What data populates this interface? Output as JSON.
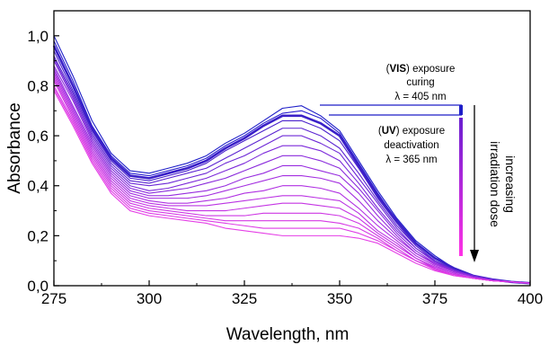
{
  "chart_data": {
    "type": "line",
    "xlabel": "Wavelength, nm",
    "ylabel": "Absorbance",
    "xlim": [
      275,
      400
    ],
    "ylim": [
      0.0,
      1.1
    ],
    "xticks": [
      275,
      300,
      325,
      350,
      375,
      400
    ],
    "xtick_labels": [
      "275",
      "300",
      "325",
      "350",
      "375",
      "400"
    ],
    "yticks": [
      0.0,
      0.2,
      0.4,
      0.6,
      0.8,
      1.0
    ],
    "ytick_labels": [
      "0,0",
      "0,2",
      "0,4",
      "0,6",
      "0,8",
      "1,0"
    ],
    "grid": false,
    "x": [
      275,
      280,
      285,
      290,
      295,
      300,
      305,
      310,
      315,
      320,
      325,
      330,
      335,
      340,
      345,
      350,
      355,
      360,
      365,
      370,
      375,
      380,
      385,
      390,
      395,
      400
    ],
    "series": [
      {
        "color": "#1f1fc8",
        "values": [
          1.0,
          0.84,
          0.66,
          0.53,
          0.46,
          0.45,
          0.47,
          0.49,
          0.52,
          0.57,
          0.61,
          0.66,
          0.71,
          0.72,
          0.68,
          0.62,
          0.5,
          0.38,
          0.27,
          0.18,
          0.12,
          0.07,
          0.04,
          0.025,
          0.015,
          0.01
        ]
      },
      {
        "color": "#2a1fd0",
        "values": [
          0.98,
          0.82,
          0.64,
          0.52,
          0.45,
          0.44,
          0.46,
          0.48,
          0.51,
          0.56,
          0.6,
          0.65,
          0.69,
          0.7,
          0.67,
          0.61,
          0.49,
          0.37,
          0.26,
          0.17,
          0.11,
          0.07,
          0.04,
          0.025,
          0.015,
          0.01
        ]
      },
      {
        "color": "#3a20c8",
        "values": [
          0.96,
          0.8,
          0.63,
          0.51,
          0.44,
          0.43,
          0.45,
          0.47,
          0.5,
          0.55,
          0.59,
          0.64,
          0.68,
          0.68,
          0.65,
          0.6,
          0.48,
          0.36,
          0.26,
          0.17,
          0.11,
          0.07,
          0.04,
          0.025,
          0.015,
          0.01
        ]
      },
      {
        "color": "#4b22cc",
        "values": [
          0.94,
          0.78,
          0.62,
          0.5,
          0.43,
          0.42,
          0.44,
          0.46,
          0.49,
          0.54,
          0.58,
          0.62,
          0.66,
          0.66,
          0.63,
          0.58,
          0.47,
          0.35,
          0.25,
          0.16,
          0.1,
          0.065,
          0.04,
          0.025,
          0.015,
          0.01
        ]
      },
      {
        "color": "#5c25d2",
        "values": [
          0.92,
          0.77,
          0.61,
          0.49,
          0.42,
          0.41,
          0.43,
          0.45,
          0.47,
          0.51,
          0.55,
          0.59,
          0.63,
          0.63,
          0.6,
          0.55,
          0.45,
          0.34,
          0.24,
          0.16,
          0.1,
          0.065,
          0.04,
          0.025,
          0.015,
          0.01
        ]
      },
      {
        "color": "#6c27d6",
        "values": [
          0.91,
          0.76,
          0.6,
          0.48,
          0.41,
          0.4,
          0.41,
          0.43,
          0.45,
          0.49,
          0.52,
          0.56,
          0.6,
          0.6,
          0.57,
          0.53,
          0.43,
          0.33,
          0.23,
          0.15,
          0.1,
          0.06,
          0.04,
          0.025,
          0.015,
          0.01
        ]
      },
      {
        "color": "#7c29da",
        "values": [
          0.9,
          0.75,
          0.59,
          0.47,
          0.4,
          0.38,
          0.39,
          0.41,
          0.43,
          0.46,
          0.49,
          0.53,
          0.56,
          0.56,
          0.54,
          0.5,
          0.41,
          0.31,
          0.22,
          0.15,
          0.095,
          0.06,
          0.04,
          0.025,
          0.015,
          0.01
        ]
      },
      {
        "color": "#8a2bdc",
        "values": [
          0.88,
          0.74,
          0.58,
          0.46,
          0.39,
          0.37,
          0.38,
          0.39,
          0.41,
          0.43,
          0.46,
          0.49,
          0.52,
          0.52,
          0.5,
          0.47,
          0.39,
          0.3,
          0.21,
          0.14,
          0.09,
          0.06,
          0.035,
          0.02,
          0.015,
          0.01
        ]
      },
      {
        "color": "#972ddf",
        "values": [
          0.87,
          0.72,
          0.57,
          0.45,
          0.38,
          0.36,
          0.36,
          0.37,
          0.38,
          0.4,
          0.43,
          0.45,
          0.48,
          0.48,
          0.46,
          0.44,
          0.37,
          0.28,
          0.2,
          0.13,
          0.09,
          0.055,
          0.035,
          0.02,
          0.015,
          0.01
        ]
      },
      {
        "color": "#a42fe0",
        "values": [
          0.86,
          0.71,
          0.56,
          0.44,
          0.37,
          0.35,
          0.35,
          0.35,
          0.36,
          0.38,
          0.4,
          0.42,
          0.44,
          0.44,
          0.43,
          0.41,
          0.34,
          0.26,
          0.19,
          0.13,
          0.085,
          0.055,
          0.035,
          0.02,
          0.015,
          0.01
        ]
      },
      {
        "color": "#b031e2",
        "values": [
          0.85,
          0.7,
          0.55,
          0.43,
          0.36,
          0.34,
          0.33,
          0.33,
          0.34,
          0.35,
          0.37,
          0.38,
          0.4,
          0.4,
          0.39,
          0.37,
          0.31,
          0.24,
          0.18,
          0.12,
          0.08,
          0.05,
          0.03,
          0.02,
          0.015,
          0.01
        ]
      },
      {
        "color": "#bb33e3",
        "values": [
          0.84,
          0.69,
          0.54,
          0.42,
          0.35,
          0.33,
          0.32,
          0.32,
          0.32,
          0.33,
          0.34,
          0.35,
          0.36,
          0.36,
          0.35,
          0.34,
          0.29,
          0.22,
          0.17,
          0.11,
          0.075,
          0.05,
          0.03,
          0.02,
          0.015,
          0.01
        ]
      },
      {
        "color": "#c535e4",
        "values": [
          0.83,
          0.68,
          0.53,
          0.41,
          0.34,
          0.32,
          0.31,
          0.3,
          0.3,
          0.3,
          0.31,
          0.32,
          0.33,
          0.33,
          0.32,
          0.31,
          0.27,
          0.21,
          0.16,
          0.11,
          0.07,
          0.045,
          0.03,
          0.02,
          0.015,
          0.01
        ]
      },
      {
        "color": "#ce37e4",
        "values": [
          0.82,
          0.67,
          0.52,
          0.4,
          0.33,
          0.31,
          0.3,
          0.29,
          0.28,
          0.28,
          0.28,
          0.29,
          0.29,
          0.29,
          0.29,
          0.28,
          0.25,
          0.2,
          0.15,
          0.1,
          0.07,
          0.045,
          0.03,
          0.02,
          0.015,
          0.01
        ]
      },
      {
        "color": "#d639e5",
        "values": [
          0.8,
          0.66,
          0.51,
          0.39,
          0.32,
          0.3,
          0.29,
          0.28,
          0.27,
          0.26,
          0.26,
          0.26,
          0.26,
          0.26,
          0.26,
          0.25,
          0.23,
          0.19,
          0.14,
          0.1,
          0.065,
          0.045,
          0.03,
          0.02,
          0.015,
          0.01
        ]
      },
      {
        "color": "#de3ce6",
        "values": [
          0.79,
          0.65,
          0.5,
          0.38,
          0.31,
          0.29,
          0.28,
          0.27,
          0.26,
          0.25,
          0.24,
          0.23,
          0.23,
          0.23,
          0.23,
          0.23,
          0.21,
          0.18,
          0.14,
          0.1,
          0.065,
          0.04,
          0.03,
          0.02,
          0.015,
          0.01
        ]
      },
      {
        "color": "#e53fe6",
        "values": [
          0.78,
          0.64,
          0.49,
          0.37,
          0.3,
          0.28,
          0.27,
          0.26,
          0.25,
          0.23,
          0.22,
          0.21,
          0.2,
          0.2,
          0.2,
          0.2,
          0.19,
          0.17,
          0.13,
          0.09,
          0.06,
          0.04,
          0.03,
          0.02,
          0.015,
          0.01
        ]
      }
    ],
    "annotations": {
      "vis_line1_bold": "VIS",
      "vis_line1_rest": "exposure",
      "vis_line2": "curing",
      "vis_line3": "λ = 405 nm",
      "uv_line1_bold": "UV",
      "uv_line1_rest": "exposure",
      "uv_line2": "deactivation",
      "uv_line3": "λ = 365 nm",
      "dose_line1": "increasing",
      "dose_line2": "irradiation dose",
      "paren_open": "(",
      "paren_close": ")",
      "vis_color": "#1f1fc8",
      "uv_color_top": "#6a1fd0",
      "uv_color_bottom": "#ff33e6"
    }
  }
}
